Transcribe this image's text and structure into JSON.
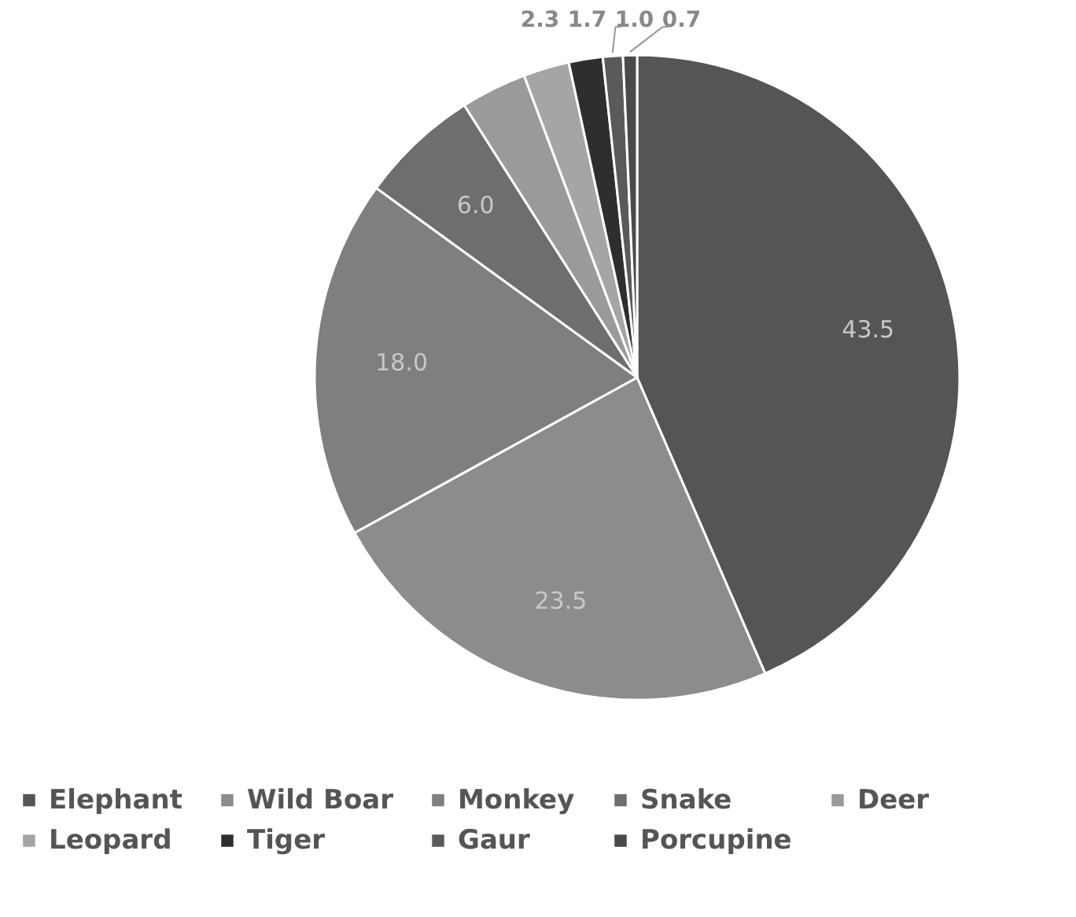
{
  "chart_data": {
    "type": "pie",
    "categories": [
      "Elephant",
      "Wild Boar",
      "Monkey",
      "Snake",
      "Deer",
      "Leopard",
      "Tiger",
      "Gaur",
      "Porcupine"
    ],
    "values": [
      43.5,
      23.5,
      18.0,
      6.0,
      3.3,
      2.3,
      1.7,
      1.0,
      0.7
    ],
    "value_labels": [
      "43.5",
      "23.5",
      "18.0",
      "6.0",
      null,
      "2.3",
      "1.7",
      "1.0",
      "0.7"
    ],
    "colors": [
      "#555555",
      "#8c8c8c",
      "#7f7f7f",
      "#6e6e6e",
      "#9a9a9a",
      "#a5a5a5",
      "#2e2e2e",
      "#5a5a5a",
      "#4a4a4a"
    ],
    "legend": "bottom"
  }
}
